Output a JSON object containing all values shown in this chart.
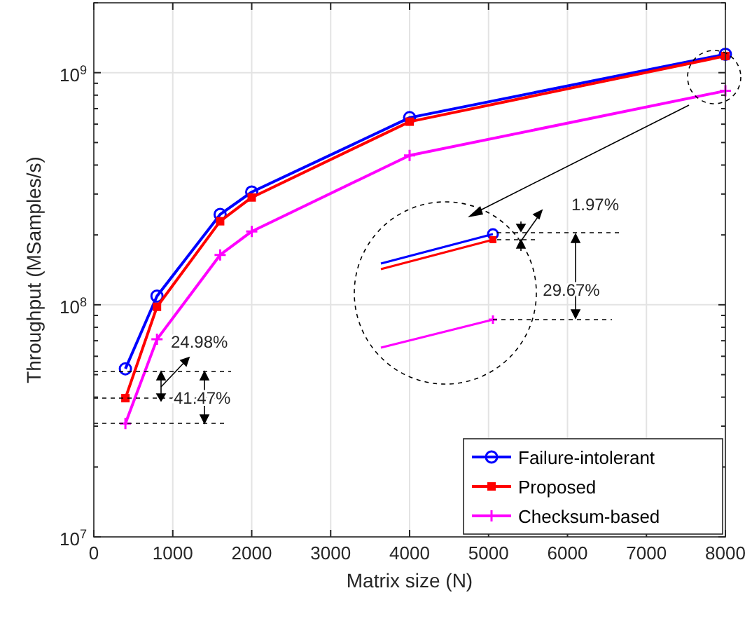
{
  "chart_data": {
    "type": "line",
    "xlabel": "Matrix size (N)",
    "ylabel": "Throughput (MSamples/s)",
    "x": [
      400,
      800,
      1600,
      2000,
      4000,
      8000
    ],
    "series": [
      {
        "name": "Failure-intolerant",
        "color": "#0000ff",
        "marker": "circle",
        "values": [
          53000000,
          109000000,
          245000000,
          306000000,
          640000000,
          1200000000
        ]
      },
      {
        "name": "Proposed",
        "color": "#ff0000",
        "marker": "square",
        "values": [
          39600000,
          98000000,
          229000000,
          290000000,
          615000000,
          1180000000
        ]
      },
      {
        "name": "Checksum-based",
        "color": "#ff00ff",
        "marker": "cross",
        "values": [
          30800000,
          71000000,
          164000000,
          207000000,
          440000000,
          835000000
        ]
      }
    ],
    "xlim": [
      0,
      8000
    ],
    "xticks": [
      0,
      1000,
      2000,
      3000,
      4000,
      5000,
      6000,
      7000,
      8000
    ],
    "ylim": [
      10000000,
      2000000000
    ],
    "yticks": [
      {
        "value": 10000000,
        "label": "10$^{7}$"
      },
      {
        "value": 100000000,
        "label": "10$^{8}$"
      },
      {
        "value": 1000000000,
        "label": "10$^{9}$"
      }
    ],
    "log": "y",
    "grid": true,
    "legend": "bottom right",
    "annotations": [
      "24.98%",
      "41.47%",
      "1.97%",
      "29.67%"
    ]
  }
}
